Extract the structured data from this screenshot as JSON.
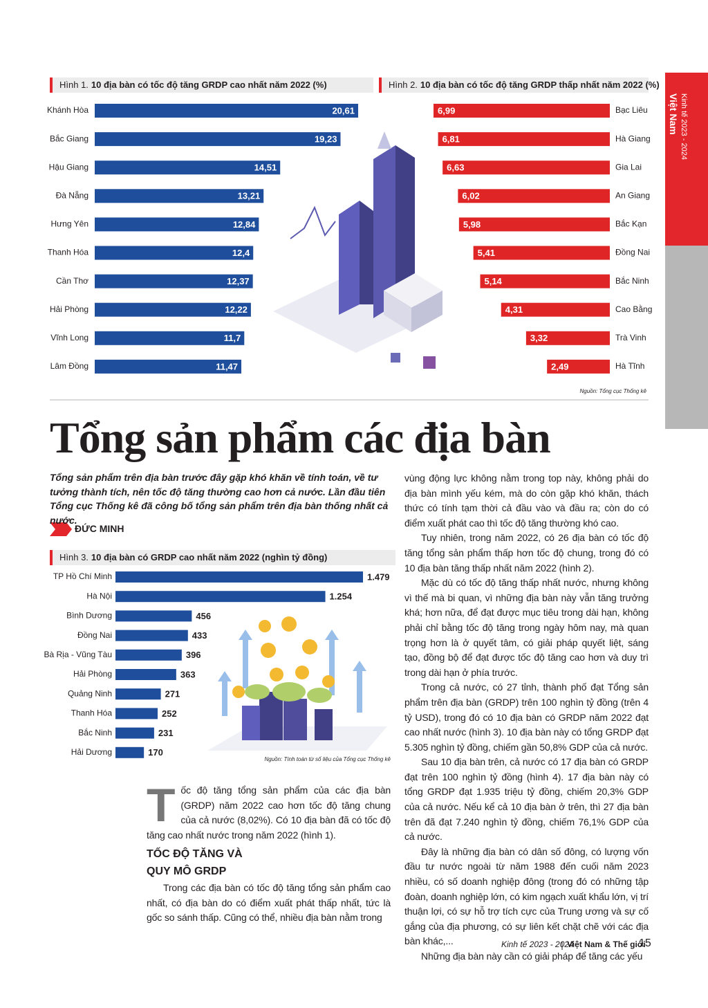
{
  "sidebar": {
    "edition": "Kinh tế 2023 - 2024",
    "country": "Việt Nam"
  },
  "chart_data": [
    {
      "type": "bar",
      "orientation": "horizontal",
      "align": "left",
      "label_position": "inside",
      "color": "#1f4e9c",
      "label_color": "#ffffff",
      "figure": "Hình 1.",
      "title": "10 địa bàn có tốc độ tăng GRDP cao nhất năm 2022 (%)",
      "categories": [
        "Khánh Hòa",
        "Bắc Giang",
        "Hậu Giang",
        "Đà Nẵng",
        "Hưng Yên",
        "Thanh Hóa",
        "Cần Thơ",
        "Hải Phòng",
        "Vĩnh Long",
        "Lâm Đồng"
      ],
      "values": [
        20.61,
        19.23,
        14.51,
        13.21,
        12.84,
        12.4,
        12.37,
        12.22,
        11.7,
        11.47
      ],
      "value_labels": [
        "20,61",
        "19,23",
        "14,51",
        "13,21",
        "12,84",
        "12,4",
        "12,37",
        "12,22",
        "11,7",
        "11,47"
      ]
    },
    {
      "type": "bar",
      "orientation": "horizontal",
      "align": "right",
      "label_position": "inside",
      "color": "#e02526",
      "label_color": "#ffffff",
      "figure": "Hình 2.",
      "title": "10 địa bàn có tốc độ tăng GRDP thấp nhất năm 2022 (%)",
      "categories": [
        "Bạc Liêu",
        "Hà Giang",
        "Gia Lai",
        "An Giang",
        "Bắc Kạn",
        "Đồng Nai",
        "Bắc Ninh",
        "Cao Bằng",
        "Trà Vinh",
        "Hà Tĩnh"
      ],
      "values": [
        6.99,
        6.81,
        6.63,
        6.02,
        5.98,
        5.41,
        5.14,
        4.31,
        3.32,
        2.49
      ],
      "value_labels": [
        "6,99",
        "6,81",
        "6,63",
        "6,02",
        "5,98",
        "5,41",
        "5,14",
        "4,31",
        "3,32",
        "2,49"
      ],
      "source": "Nguồn: Tổng cục Thống kê"
    },
    {
      "type": "bar",
      "orientation": "horizontal",
      "align": "left",
      "label_position": "outside",
      "color": "#1f4e9c",
      "label_color": "#231f20",
      "figure": "Hình 3.",
      "title": "10 địa bàn có GRDP cao nhất năm 2022 (nghìn tỷ đồng)",
      "categories": [
        "TP Hồ Chí Minh",
        "Hà Nội",
        "Bình Dương",
        "Đồng Nai",
        "Bà Rịa - Vũng Tàu",
        "Hải Phòng",
        "Quảng Ninh",
        "Thanh Hóa",
        "Bắc Ninh",
        "Hải Dương"
      ],
      "values": [
        1479,
        1254,
        456,
        433,
        396,
        363,
        271,
        252,
        231,
        170
      ],
      "value_labels": [
        "1.479",
        "1.254",
        "456",
        "433",
        "396",
        "363",
        "271",
        "252",
        "231",
        "170"
      ],
      "source": "Nguồn: Tính toán từ số liệu của Tổng cục Thống kê"
    }
  ],
  "article": {
    "headline": "Tổng sản phẩm các địa bàn",
    "lead": "Tổng sản phẩm trên địa bàn trước đây gặp khó khăn về tính toán, về tư tưởng thành tích, nên tốc độ tăng thường cao hơn cả nước. Lần đầu tiên Tổng cục Thống kê đã công bố tổng sản phẩm trên địa bàn thống nhất cả nước.",
    "author": "ĐỨC MINH",
    "intro": "Tốc độ tăng tổng sản phẩm của các địa bàn (GRDP) năm 2022 cao hơn tốc độ tăng chung của cả nước (8,02%). Có 10 địa bàn đã có tốc độ tăng cao nhất nước trong năm 2022 (hình 1).",
    "section_heading": "TỐC ĐỘ TĂNG VÀ QUY MÔ GRDP",
    "paragraphs": [
      "Trong các địa bàn có tốc độ tăng tổng sản phẩm cao nhất, có địa bàn do có điểm xuất phát thấp nhất, tức là gốc so sánh thấp. Cũng có thể, nhiều địa bàn nằm trong",
      "vùng động lực không nằm trong top này, không phải do địa bàn mình yếu kém, mà do còn gặp khó khăn, thách thức có tính tạm thời cả đầu vào và đầu ra; còn do có điểm xuất phát cao thì tốc độ tăng thường khó cao.",
      "Tuy nhiên, trong năm 2022, có 26 địa bàn có tốc độ tăng tổng sản phẩm thấp hơn tốc độ chung, trong đó có 10 địa bàn tăng thấp nhất năm 2022 (hình 2).",
      "Mặc dù có tốc độ tăng thấp nhất nước, nhưng không vì thế mà bi quan, vì những địa bàn này vẫn tăng trưởng khá; hơn nữa, để đạt được mục tiêu trong dài hạn, không phải chỉ bằng tốc độ tăng trong ngày hôm nay, mà quan trọng hơn là ở quyết tâm, có giải pháp quyết liệt, sáng tạo, đồng bộ để đạt được tốc độ tăng cao hơn và duy trì trong dài hạn ở phía trước.",
      "Trong cả nước, có 27 tỉnh, thành phố đạt Tổng sản phẩm trên địa bàn (GRDP) trên 100 nghìn tỷ đồng (trên 4 tỷ USD), trong đó có 10 địa bàn có GRDP năm 2022 đạt cao nhất nước (hình 3). 10 địa bàn này có tổng GRDP đạt 5.305 nghìn tỷ đồng, chiếm gần 50,8% GDP của cả nước.",
      "Sau 10 địa bàn trên, cả nước có 17 địa bàn có GRDP đạt trên 100 nghìn tỷ đồng (hình 4). 17 địa bàn này có tổng GRDP đạt 1.935 triệu tỷ đồng, chiếm 20,3% GDP của cả nước. Nếu kể cả 10 địa bàn ở trên, thì 27 địa bàn trên đã đạt 7.240 nghìn tỷ đồng, chiếm 76,1% GDP của cả nước.",
      "Đây là những địa bàn có dân số đông, có lượng vốn đầu tư nước ngoài từ năm 1988 đến cuối năm 2023 nhiều, có số doanh nghiệp đông (trong đó có những tập đoàn, doanh nghiệp lớn, có kim ngạch xuất khẩu lớn, vị trí thuận lợi, có sự hỗ trợ tích cực của Trung ương và sự cố gắng của địa phương, có sự liên kết chặt chẽ với các địa bàn khác,...",
      "Những địa bàn này cần có giải pháp để tăng các yếu"
    ]
  },
  "footer": {
    "edition": "Kinh tế 2023 - 2024",
    "publication": "Việt Nam & Thế giới",
    "page": "15"
  }
}
